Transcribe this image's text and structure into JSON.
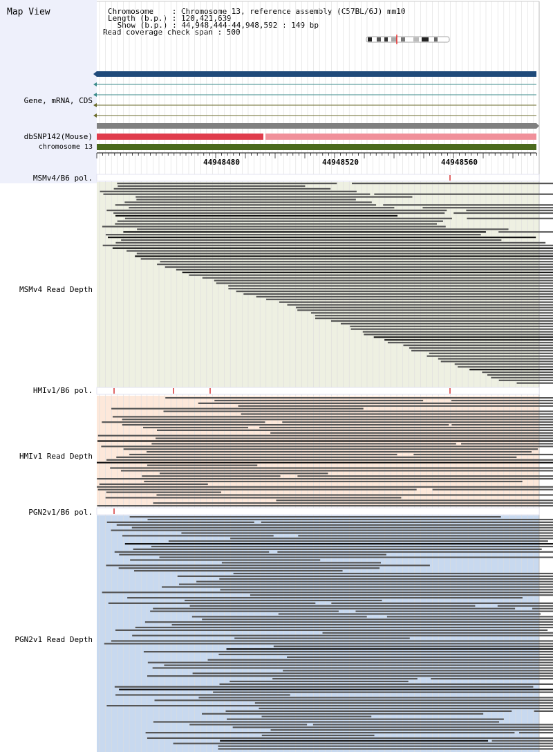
{
  "title": "Map View",
  "header": {
    "chromosome": "Chromosome    : Chromosome 13, reference assembly (C57BL/6J) mm10",
    "length": "Length (b.p.) : 120,421,639",
    "show": " Show (b.p.) : 44,948,444-44,948,592 : 149 bp",
    "coverage": "Read coverage check span : 500"
  },
  "tracks": {
    "gene_label": "Gene, mRNA, CDS",
    "snp_label": "dbSNP142(Mouse)",
    "chrom_label": "chromosome 13"
  },
  "ruler": {
    "ticks": [
      "44948480",
      "44948520",
      "44948560"
    ]
  },
  "panels": {
    "msm_pol": "MSMv4/B6 pol.",
    "msm_depth": "MSMv4 Read Depth",
    "hmi_pol": "HMIv1/B6 pol.",
    "hmi_depth": "HMIv1 Read Depth",
    "pgn_pol": "PGN2v1/B6 pol.",
    "pgn_depth": "PGN2v1 Read Depth"
  },
  "colors": {
    "gene_main": "#1f4a7a",
    "snp_dark": "#e03c4c",
    "snp_light": "#f0909a",
    "chrom": "#4a6a1c",
    "msm_bg": "#eef0e2",
    "hmi_bg": "#fde8da",
    "pgn_bg": "#c8d9ef",
    "read": "#555555",
    "read_dark": "#111111"
  }
}
